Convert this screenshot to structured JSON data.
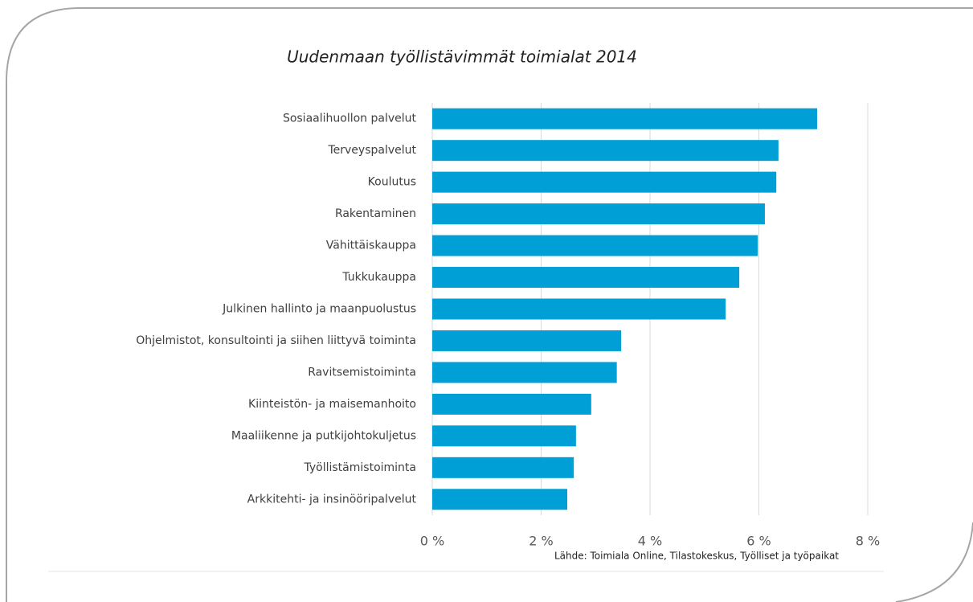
{
  "chart_data": {
    "type": "bar",
    "orientation": "horizontal",
    "title": "Uudenmaan työllistävimmät toimialat 2014",
    "source": "Lähde: Toimiala Online, Tilastokeskus, Työlliset ja työpaikat",
    "categories": [
      "Sosiaalihuollon palvelut",
      "Terveyspalvelut",
      "Koulutus",
      "Rakentaminen",
      "Vähittäiskauppa",
      "Tukkukauppa",
      "Julkinen hallinto ja maanpuolustus",
      "Ohjelmistot, konsultointi ja siihen liittyvä toiminta",
      "Ravitsemistoiminta",
      "Kiinteistön- ja maisemanhoito",
      "Maaliikenne ja putkijohtokuljetus",
      "Työllistämistoiminta",
      "Arkkitehti- ja insinööripalvelut"
    ],
    "values": [
      7.07,
      6.36,
      6.32,
      6.11,
      5.98,
      5.64,
      5.39,
      3.47,
      3.39,
      2.92,
      2.64,
      2.6,
      2.48
    ],
    "color": "#00a0d6",
    "xlim": [
      0,
      8
    ],
    "xticks": [
      {
        "value": 0,
        "label": "0 %"
      },
      {
        "value": 2,
        "label": "2 %"
      },
      {
        "value": 4,
        "label": "4 %"
      },
      {
        "value": 6,
        "label": "6 %"
      },
      {
        "value": 8,
        "label": "8 %"
      }
    ],
    "grid": true
  }
}
